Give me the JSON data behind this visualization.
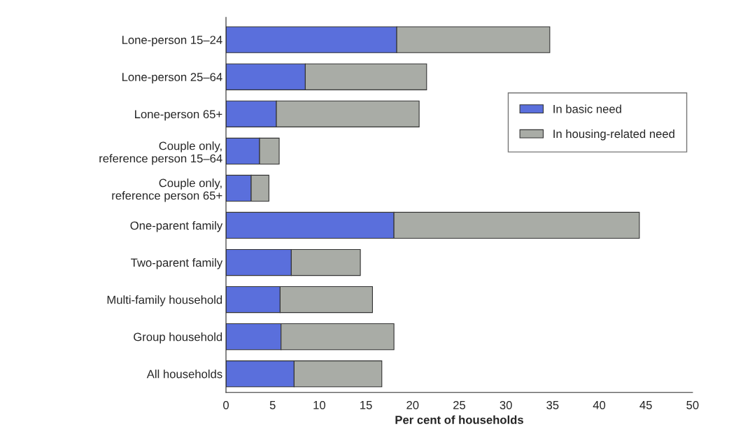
{
  "chart_data": {
    "type": "bar",
    "orientation": "horizontal",
    "stacked": true,
    "xlabel": "Per cent of households",
    "categories": [
      "Lone-person 15–24",
      "Lone-person 25–64",
      "Lone-person 65+",
      "Couple only,\nreference person 15–64",
      "Couple only,\nreference person 65+",
      "One-parent family",
      "Two-parent family",
      "Multi-family household",
      "Group household",
      "All households"
    ],
    "series": [
      {
        "name": "In basic need",
        "color": "#5a6fdc",
        "values": [
          18.3,
          8.5,
          5.4,
          3.6,
          2.7,
          18.0,
          7.0,
          5.8,
          5.9,
          7.3
        ]
      },
      {
        "name": "In housing-related need",
        "color": "#a9aca6",
        "values": [
          16.4,
          13.0,
          15.3,
          2.1,
          1.9,
          26.3,
          7.4,
          9.9,
          12.1,
          9.4
        ]
      }
    ],
    "xlim": [
      0,
      50
    ],
    "xticks": [
      0,
      5,
      10,
      15,
      20,
      25,
      30,
      35,
      40,
      45,
      50
    ],
    "grid": false,
    "legend": "right"
  }
}
